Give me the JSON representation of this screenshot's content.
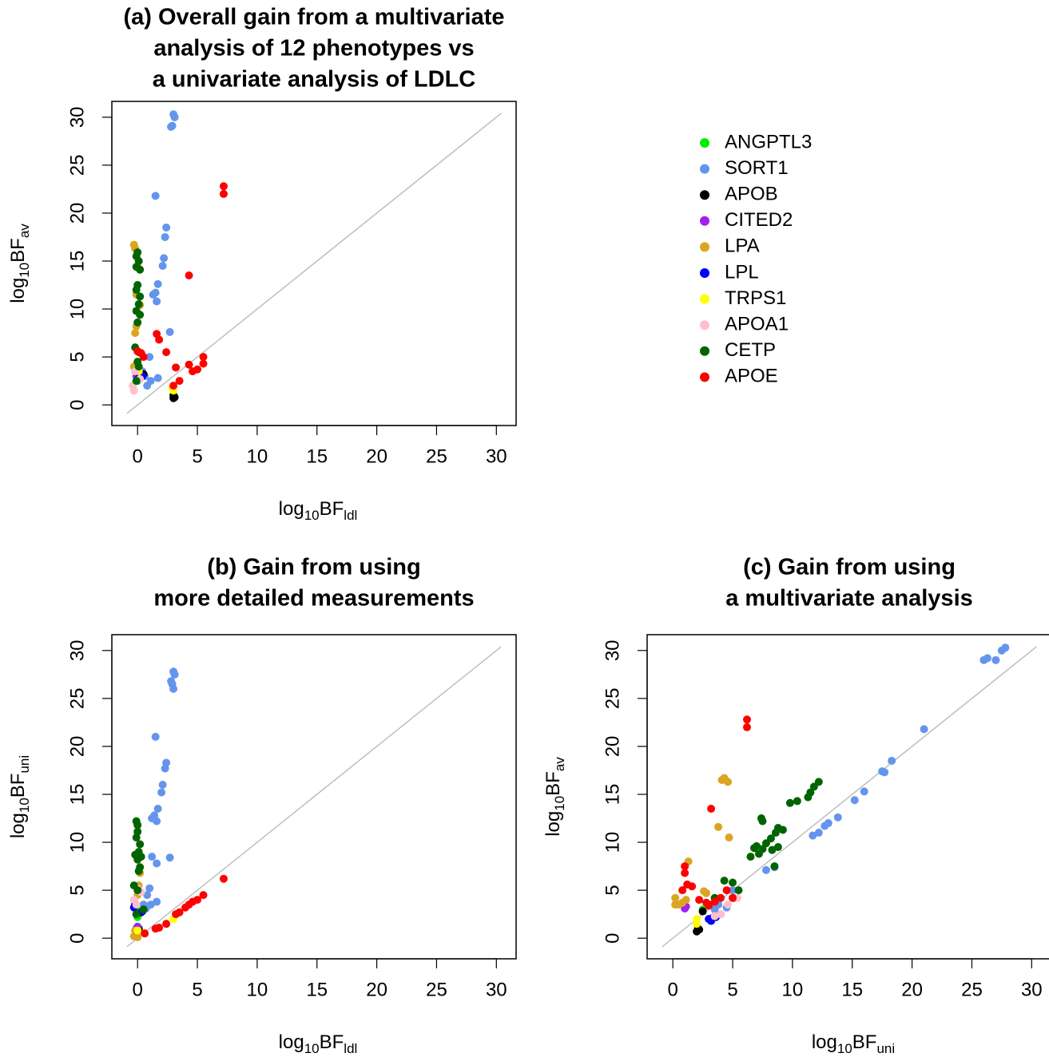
{
  "legend": {
    "entries": [
      {
        "name": "ANGPTL3",
        "color": "#00ee00"
      },
      {
        "name": "SORT1",
        "color": "#6495ed"
      },
      {
        "name": "APOB",
        "color": "#000000"
      },
      {
        "name": "CITED2",
        "color": "#a020f0"
      },
      {
        "name": "LPA",
        "color": "#daa520"
      },
      {
        "name": "LPL",
        "color": "#0000ff"
      },
      {
        "name": "TRPS1",
        "color": "#ffff00"
      },
      {
        "name": "APOA1",
        "color": "#ffc0cb"
      },
      {
        "name": "CETP",
        "color": "#006400"
      },
      {
        "name": "APOE",
        "color": "#ff0000"
      }
    ]
  },
  "chart_data": [
    {
      "type": "scatter",
      "title": [
        "(a) Overall gain from a multivariate",
        "analysis of 12 phenotypes vs",
        "a univariate analysis of LDLC"
      ],
      "xlabel": [
        "log",
        "10",
        "BF",
        "ldl"
      ],
      "ylabel": [
        "log",
        "10",
        "BF",
        "av"
      ],
      "xlim": [
        -2.15,
        31.65
      ],
      "ylim": [
        -2.15,
        31.65
      ],
      "xticks": [
        0,
        5,
        10,
        15,
        20,
        25,
        30
      ],
      "yticks": [
        0,
        5,
        10,
        15,
        20,
        25,
        30
      ],
      "series": [
        {
          "x": [
            0,
            0.1
          ],
          "values": [
            2.5,
            3.2
          ]
        },
        {
          "x": [
            3,
            3.1,
            2.9,
            2.8,
            1.5,
            2.4,
            2.3,
            2.2,
            2.1,
            1.7,
            1.5,
            1.3,
            1.6,
            2.7,
            1.0,
            0.6,
            1.1,
            0.8,
            1.7,
            0.4
          ],
          "values": [
            30.3,
            30,
            29.1,
            29,
            21.8,
            18.5,
            17.5,
            15.3,
            14.5,
            12.6,
            11.7,
            11.5,
            10.8,
            7.6,
            5,
            3,
            2.5,
            2,
            2.8,
            3.5
          ]
        },
        {
          "x": [
            3,
            3,
            3.1,
            0.5
          ],
          "values": [
            0.7,
            1,
            0.8,
            3.2
          ]
        },
        {
          "x": [
            -0.1,
            0
          ],
          "values": [
            3,
            3.3
          ]
        },
        {
          "x": [
            -0.3,
            -0.2,
            0,
            -0.1,
            0.2,
            -0.1,
            -0.2,
            -0.3,
            0,
            -0.2
          ],
          "values": [
            16.7,
            16.3,
            14.5,
            11.5,
            10.4,
            8.2,
            7.5,
            4,
            3.5,
            3.6
          ]
        },
        {
          "x": [
            0.1,
            0.1,
            0.4
          ],
          "values": [
            2.8,
            3.3,
            3
          ]
        },
        {
          "x": [
            3,
            2.9,
            0.1
          ],
          "values": [
            1.5,
            1.8,
            3.5
          ]
        },
        {
          "x": [
            -0.4,
            -0.3,
            -0.2,
            0.2
          ],
          "values": [
            2,
            1.5,
            3.5,
            2.7
          ]
        },
        {
          "x": [
            0,
            -0.1,
            0.1,
            -0.1,
            0.2,
            0,
            -0.1,
            0.2,
            0.1,
            -0.1,
            0.2,
            0,
            -0.2,
            0.1,
            0,
            -0.1,
            0.1
          ],
          "values": [
            15.9,
            15.5,
            15,
            14.4,
            14.1,
            12.5,
            12,
            11.3,
            10.5,
            9.8,
            9.4,
            8.6,
            6,
            5.5,
            4.5,
            2.5,
            4
          ]
        },
        {
          "x": [
            7.2,
            7.2,
            4.3,
            1.6,
            1.8,
            0,
            0.3,
            2.4,
            3.2,
            4.3,
            4.6,
            5,
            5.5,
            5.5,
            3.5,
            3,
            0.5
          ],
          "values": [
            22.8,
            22,
            13.5,
            7.4,
            6.8,
            5.6,
            5.4,
            5.5,
            3.9,
            4.2,
            3.5,
            3.7,
            4.3,
            5,
            2.5,
            2,
            5
          ]
        }
      ]
    },
    {
      "type": "scatter",
      "title": [
        "(b) Gain from using",
        "more detailed measurements"
      ],
      "xlabel": [
        "log",
        "10",
        "BF",
        "ldl"
      ],
      "ylabel": [
        "log",
        "10",
        "BF",
        "uni"
      ],
      "xlim": [
        -2.15,
        31.65
      ],
      "ylim": [
        -2.15,
        31.65
      ],
      "xticks": [
        0,
        5,
        10,
        15,
        20,
        25,
        30
      ],
      "yticks": [
        0,
        5,
        10,
        15,
        20,
        25,
        30
      ],
      "series": [
        {
          "x": [
            0,
            0.1
          ],
          "values": [
            2.2,
            2.8
          ]
        },
        {
          "x": [
            3,
            3.1,
            2.9,
            3,
            2.8,
            1.5,
            2.4,
            2.3,
            2.1,
            2,
            1.7,
            1.4,
            1.2,
            1.6,
            1.2,
            1.6,
            2.7,
            1.0,
            0.8,
            1.1,
            1.6,
            0.7,
            0.5
          ],
          "values": [
            27.8,
            27.5,
            26.5,
            26,
            26.8,
            21,
            18.3,
            17.7,
            16,
            15.2,
            13.5,
            12.8,
            12.5,
            12.2,
            8.5,
            7.8,
            8.4,
            5.2,
            4.5,
            3.5,
            3.8,
            3.1,
            3.5
          ]
        },
        {
          "x": [
            0.1,
            0.3,
            -0.1
          ],
          "values": [
            1,
            2.7,
            0.5
          ]
        },
        {
          "x": [
            -0.1,
            0
          ],
          "values": [
            1,
            1.2
          ]
        },
        {
          "x": [
            -0.2,
            -0.1,
            0,
            -0.3,
            0.2,
            0.1,
            0,
            -0.2
          ],
          "values": [
            0.3,
            0.6,
            0.1,
            0.2,
            6.8,
            5.5,
            4.5,
            0.8
          ]
        },
        {
          "x": [
            -0.3,
            -0.2,
            0.4
          ],
          "values": [
            3.2,
            3.6,
            2.8
          ]
        },
        {
          "x": [
            3,
            0
          ],
          "values": [
            2,
            0.8
          ]
        },
        {
          "x": [
            -0.3,
            0,
            0.3,
            -0.1
          ],
          "values": [
            4,
            5.2,
            4.8,
            3.5
          ]
        },
        {
          "x": [
            -0.1,
            0,
            0,
            -0.1,
            0.2,
            0.1,
            -0.2,
            0,
            0.3,
            0.2,
            0.1,
            -0.3,
            0,
            0.5,
            -0.1
          ],
          "values": [
            12.2,
            11.8,
            11.1,
            10.5,
            9.8,
            9,
            8.7,
            8.2,
            8.5,
            7.4,
            7,
            5.5,
            5,
            3,
            2.5
          ]
        },
        {
          "x": [
            7.2,
            5.5,
            5,
            4.6,
            4.3,
            4,
            3.2,
            2.4,
            1.8,
            1.5,
            0.6,
            3.5
          ],
          "values": [
            6.2,
            4.5,
            4,
            3.8,
            3.5,
            3.2,
            2.5,
            1.5,
            1.1,
            1,
            0.5,
            2.7
          ]
        }
      ]
    },
    {
      "type": "scatter",
      "title": [
        "(c) Gain from using",
        "a multivariate analysis"
      ],
      "xlabel": [
        "log",
        "10",
        "BF",
        "uni"
      ],
      "ylabel": [
        "log",
        "10",
        "BF",
        "av"
      ],
      "xlim": [
        -2.15,
        31.65
      ],
      "ylim": [
        -2.15,
        31.65
      ],
      "xticks": [
        0,
        5,
        10,
        15,
        20,
        25,
        30
      ],
      "yticks": [
        0,
        5,
        10,
        15,
        20,
        25,
        30
      ],
      "series": [
        {
          "x": [
            2.5,
            3
          ],
          "values": [
            3,
            3.5
          ]
        },
        {
          "x": [
            26,
            26.3,
            27,
            27.5,
            27.8,
            21,
            18.3,
            17.7,
            17.5,
            16,
            15.2,
            13.8,
            13,
            12.7,
            12.2,
            11.7,
            8.5,
            7.8,
            4.5,
            5,
            3.5,
            4,
            3.8,
            5.2
          ],
          "values": [
            29,
            29.2,
            29,
            30,
            30.3,
            21.8,
            18.5,
            17.3,
            17.4,
            15.3,
            14.4,
            12.6,
            12,
            11.7,
            11,
            10.7,
            7.4,
            7.1,
            3.2,
            5,
            3,
            2.5,
            3.5,
            4.2
          ]
        },
        {
          "x": [
            2,
            2.1,
            2.2,
            2.5
          ],
          "values": [
            0.7,
            1,
            0.9,
            2.8
          ]
        },
        {
          "x": [
            1,
            1.1
          ],
          "values": [
            3.1,
            3.3
          ]
        },
        {
          "x": [
            4.3,
            4.1,
            4.6,
            3.8,
            4.7,
            1.3,
            0.2,
            0.5,
            0.2,
            0.8,
            1.1,
            2.8,
            2.6
          ],
          "values": [
            16.7,
            16.5,
            16.3,
            11.6,
            10.5,
            8,
            4.2,
            3.5,
            3.5,
            3.7,
            4,
            4.7,
            4.9
          ]
        },
        {
          "x": [
            3.2,
            3.3,
            3.6,
            3
          ],
          "values": [
            1.8,
            2.1,
            2.2,
            2
          ]
        },
        {
          "x": [
            2,
            2
          ],
          "values": [
            1.5,
            2
          ]
        },
        {
          "x": [
            3.5,
            4,
            5.4,
            4.6
          ],
          "values": [
            2.3,
            2.5,
            4.2,
            3.5
          ]
        },
        {
          "x": [
            12.2,
            11.8,
            11.5,
            11.3,
            10.4,
            9.8,
            7.4,
            7.5,
            8.8,
            9.2,
            8.6,
            8.2,
            7.8,
            7,
            7.5,
            6.8,
            8.3,
            8.8,
            6.5,
            7.2,
            8.5,
            5,
            4.3,
            5.5,
            3.5,
            3
          ],
          "values": [
            16.3,
            15.8,
            15.2,
            14.7,
            14.3,
            14.1,
            12.5,
            12.2,
            11.5,
            11.3,
            11,
            10.4,
            9.9,
            9.6,
            9.3,
            9.4,
            9.2,
            9.5,
            8.5,
            8.8,
            7.5,
            5.8,
            6,
            5,
            4.2,
            3.5
          ]
        },
        {
          "x": [
            6.2,
            6.2,
            3.2,
            1,
            1,
            0.8,
            1.2,
            1.6,
            2.2,
            3,
            4,
            4.5,
            3.5,
            2.8,
            5
          ],
          "values": [
            22.8,
            22,
            13.5,
            7.5,
            6.8,
            5,
            5.6,
            5.4,
            4,
            3.4,
            4.2,
            5,
            3.8,
            3.7,
            4.2
          ]
        }
      ]
    }
  ]
}
